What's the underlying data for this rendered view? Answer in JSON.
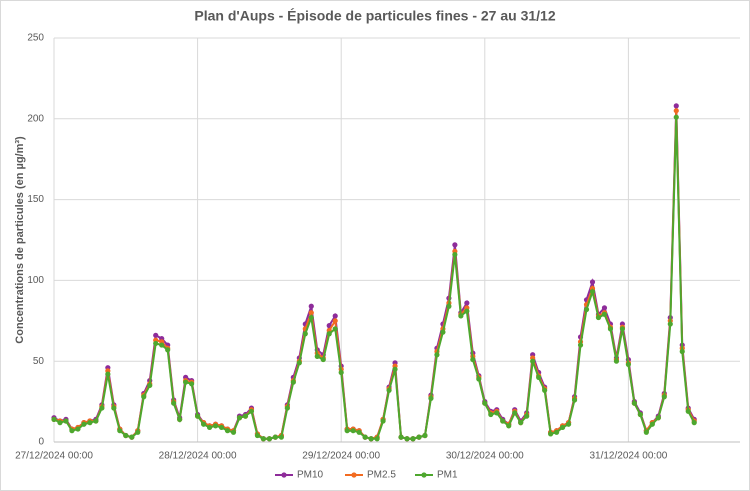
{
  "chart_data": {
    "type": "line",
    "title": "Plan d'Aups - Épisode de particules fines - 27 au 31/12",
    "y_label": "Concentrations de particules (en µg/m³)",
    "categories": [
      "27/12/2024 00:00",
      null,
      null,
      null,
      null,
      null,
      null,
      null,
      null,
      null,
      null,
      null,
      null,
      null,
      null,
      null,
      null,
      null,
      null,
      null,
      null,
      null,
      null,
      null,
      "28/12/2024 00:00",
      null,
      null,
      null,
      null,
      null,
      null,
      null,
      null,
      null,
      null,
      null,
      null,
      null,
      null,
      null,
      null,
      null,
      null,
      null,
      null,
      null,
      null,
      null,
      "29/12/2024 00:00",
      null,
      null,
      null,
      null,
      null,
      null,
      null,
      null,
      null,
      null,
      null,
      null,
      null,
      null,
      null,
      null,
      null,
      null,
      null,
      null,
      null,
      null,
      null,
      "30/12/2024 00:00",
      null,
      null,
      null,
      null,
      null,
      null,
      null,
      null,
      null,
      null,
      null,
      null,
      null,
      null,
      null,
      null,
      null,
      null,
      null,
      null,
      null,
      null,
      null,
      "31/12/2024 00:00",
      null,
      null,
      null,
      null,
      null,
      null,
      null,
      null,
      null,
      null,
      null
    ],
    "series": [
      {
        "name": "PM10",
        "color": "#8e2c9a",
        "values": [
          15,
          13,
          14,
          8,
          9,
          12,
          13,
          14,
          23,
          46,
          23,
          8,
          4,
          3,
          7,
          30,
          38,
          66,
          64,
          60,
          26,
          15,
          40,
          38,
          17,
          12,
          10,
          11,
          10,
          8,
          7,
          16,
          17,
          21,
          5,
          2,
          2,
          3,
          4,
          23,
          40,
          52,
          73,
          84,
          57,
          54,
          72,
          78,
          47,
          8,
          8,
          7,
          3,
          2,
          3,
          14,
          34,
          49,
          3,
          2,
          2,
          3,
          4,
          29,
          58,
          73,
          89,
          122,
          80,
          86,
          55,
          41,
          25,
          19,
          20,
          14,
          11,
          20,
          13,
          18,
          54,
          43,
          34,
          6,
          7,
          10,
          12,
          28,
          65,
          88,
          99,
          79,
          83,
          73,
          52,
          73,
          51,
          25,
          18,
          7,
          12,
          16,
          30,
          77,
          208,
          60,
          21,
          14
        ]
      },
      {
        "name": "PM2.5",
        "color": "#f26b21",
        "values": [
          14,
          13,
          13,
          8,
          9,
          12,
          13,
          13,
          22,
          44,
          22,
          8,
          4,
          3,
          7,
          29,
          36,
          63,
          62,
          58,
          25,
          14,
          38,
          37,
          16,
          12,
          10,
          11,
          10,
          8,
          7,
          15,
          16,
          20,
          5,
          2,
          2,
          3,
          4,
          22,
          38,
          50,
          70,
          80,
          55,
          52,
          69,
          75,
          45,
          8,
          8,
          7,
          3,
          2,
          3,
          14,
          33,
          47,
          3,
          2,
          2,
          3,
          4,
          28,
          56,
          70,
          86,
          118,
          79,
          83,
          53,
          40,
          24,
          18,
          19,
          13,
          11,
          19,
          12,
          17,
          52,
          41,
          33,
          6,
          7,
          10,
          12,
          27,
          62,
          85,
          95,
          78,
          80,
          71,
          51,
          71,
          49,
          24,
          17,
          7,
          12,
          15,
          29,
          75,
          205,
          58,
          20,
          13
        ]
      },
      {
        "name": "PM1",
        "color": "#4ea72e",
        "values": [
          14,
          12,
          13,
          7,
          8,
          11,
          12,
          13,
          21,
          42,
          21,
          7,
          4,
          3,
          6,
          28,
          35,
          61,
          60,
          57,
          24,
          14,
          37,
          36,
          16,
          11,
          9,
          10,
          9,
          7,
          6,
          15,
          16,
          19,
          4,
          2,
          2,
          3,
          3,
          21,
          37,
          49,
          67,
          77,
          53,
          51,
          67,
          70,
          43,
          7,
          7,
          6,
          3,
          2,
          2,
          13,
          32,
          45,
          3,
          2,
          2,
          3,
          4,
          27,
          54,
          68,
          84,
          116,
          78,
          81,
          51,
          39,
          24,
          17,
          18,
          13,
          10,
          18,
          12,
          16,
          50,
          40,
          32,
          5,
          6,
          9,
          11,
          26,
          60,
          82,
          93,
          77,
          79,
          70,
          50,
          70,
          48,
          24,
          17,
          6,
          11,
          15,
          28,
          73,
          201,
          56,
          19,
          12
        ]
      }
    ],
    "ylim": [
      0,
      250
    ],
    "yticks": [
      0,
      50,
      100,
      150,
      200,
      250
    ],
    "grid": true,
    "legend": "bottom"
  }
}
